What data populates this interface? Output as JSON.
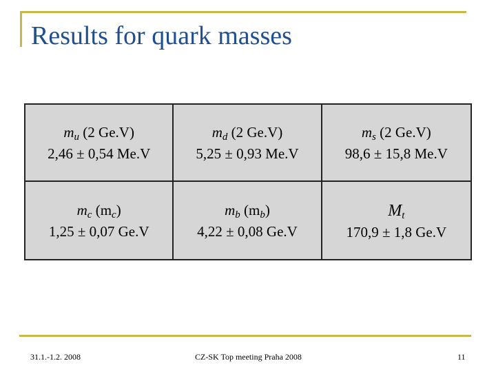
{
  "slide": {
    "title": "Results for quark masses",
    "colors": {
      "title": "#1f4f8f",
      "accent_rule": "#c8b84a",
      "cell_bg": "#d6d6d6"
    }
  },
  "cells": [
    {
      "sym": "m",
      "sub": "u",
      "after": " (2 Ge.V)",
      "value": "2,46 ± 0,54 Me.V"
    },
    {
      "sym": "m",
      "sub": "d",
      "after": " (2 Ge.V)",
      "value": "5,25 ± 0,93 Me.V"
    },
    {
      "sym": "m",
      "sub": "s",
      "after": " (2 Ge.V)",
      "value": "98,6 ± 15,8 Me.V"
    },
    {
      "sym": "m",
      "sub": "c",
      "after": " (m",
      "sub2": "c",
      "close": ")",
      "value": "1,25 ± 0,07 Ge.V"
    },
    {
      "sym": "m",
      "sub": "b",
      "after": " (m",
      "sub2": "b",
      "close": ")",
      "value": "4,22 ± 0,08 Ge.V"
    },
    {
      "sym": "M",
      "sub": "t",
      "after": "",
      "value": "170,9 ± 1,8 Ge.V"
    }
  ],
  "footer": {
    "date": "31.1.-1.2. 2008",
    "meeting": "CZ-SK Top meeting Praha 2008",
    "page": "11"
  }
}
